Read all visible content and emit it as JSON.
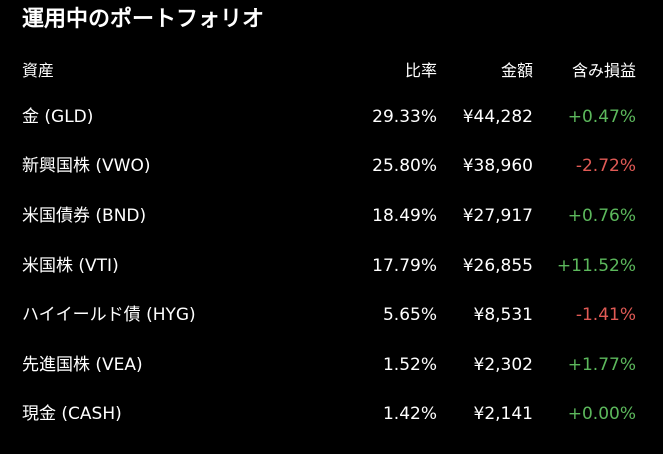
{
  "title": "運用中のポートフォリオ",
  "headers": {
    "asset": "資産",
    "ratio": "比率",
    "amount": "金額",
    "unrealized": "含み損益"
  },
  "holdings": [
    {
      "name": "金 (GLD)",
      "ratio": "29.33%",
      "amount": "¥44,282",
      "pl": "+0.47%",
      "direction": "positive"
    },
    {
      "name": "新興国株 (VWO)",
      "ratio": "25.80%",
      "amount": "¥38,960",
      "pl": "-2.72%",
      "direction": "negative"
    },
    {
      "name": "米国債券 (BND)",
      "ratio": "18.49%",
      "amount": "¥27,917",
      "pl": "+0.76%",
      "direction": "positive"
    },
    {
      "name": "米国株 (VTI)",
      "ratio": "17.79%",
      "amount": "¥26,855",
      "pl": "+11.52%",
      "direction": "positive"
    },
    {
      "name": "ハイイールド債 (HYG)",
      "ratio": "5.65%",
      "amount": "¥8,531",
      "pl": "-1.41%",
      "direction": "negative"
    },
    {
      "name": "先進国株 (VEA)",
      "ratio": "1.52%",
      "amount": "¥2,302",
      "pl": "+1.77%",
      "direction": "positive"
    },
    {
      "name": "現金 (CASH)",
      "ratio": "1.42%",
      "amount": "¥2,141",
      "pl": "+0.00%",
      "direction": "positive"
    }
  ],
  "colors": {
    "background": "#000000",
    "text": "#ffffff",
    "positive": "#5cb85c",
    "negative": "#e05a55"
  }
}
